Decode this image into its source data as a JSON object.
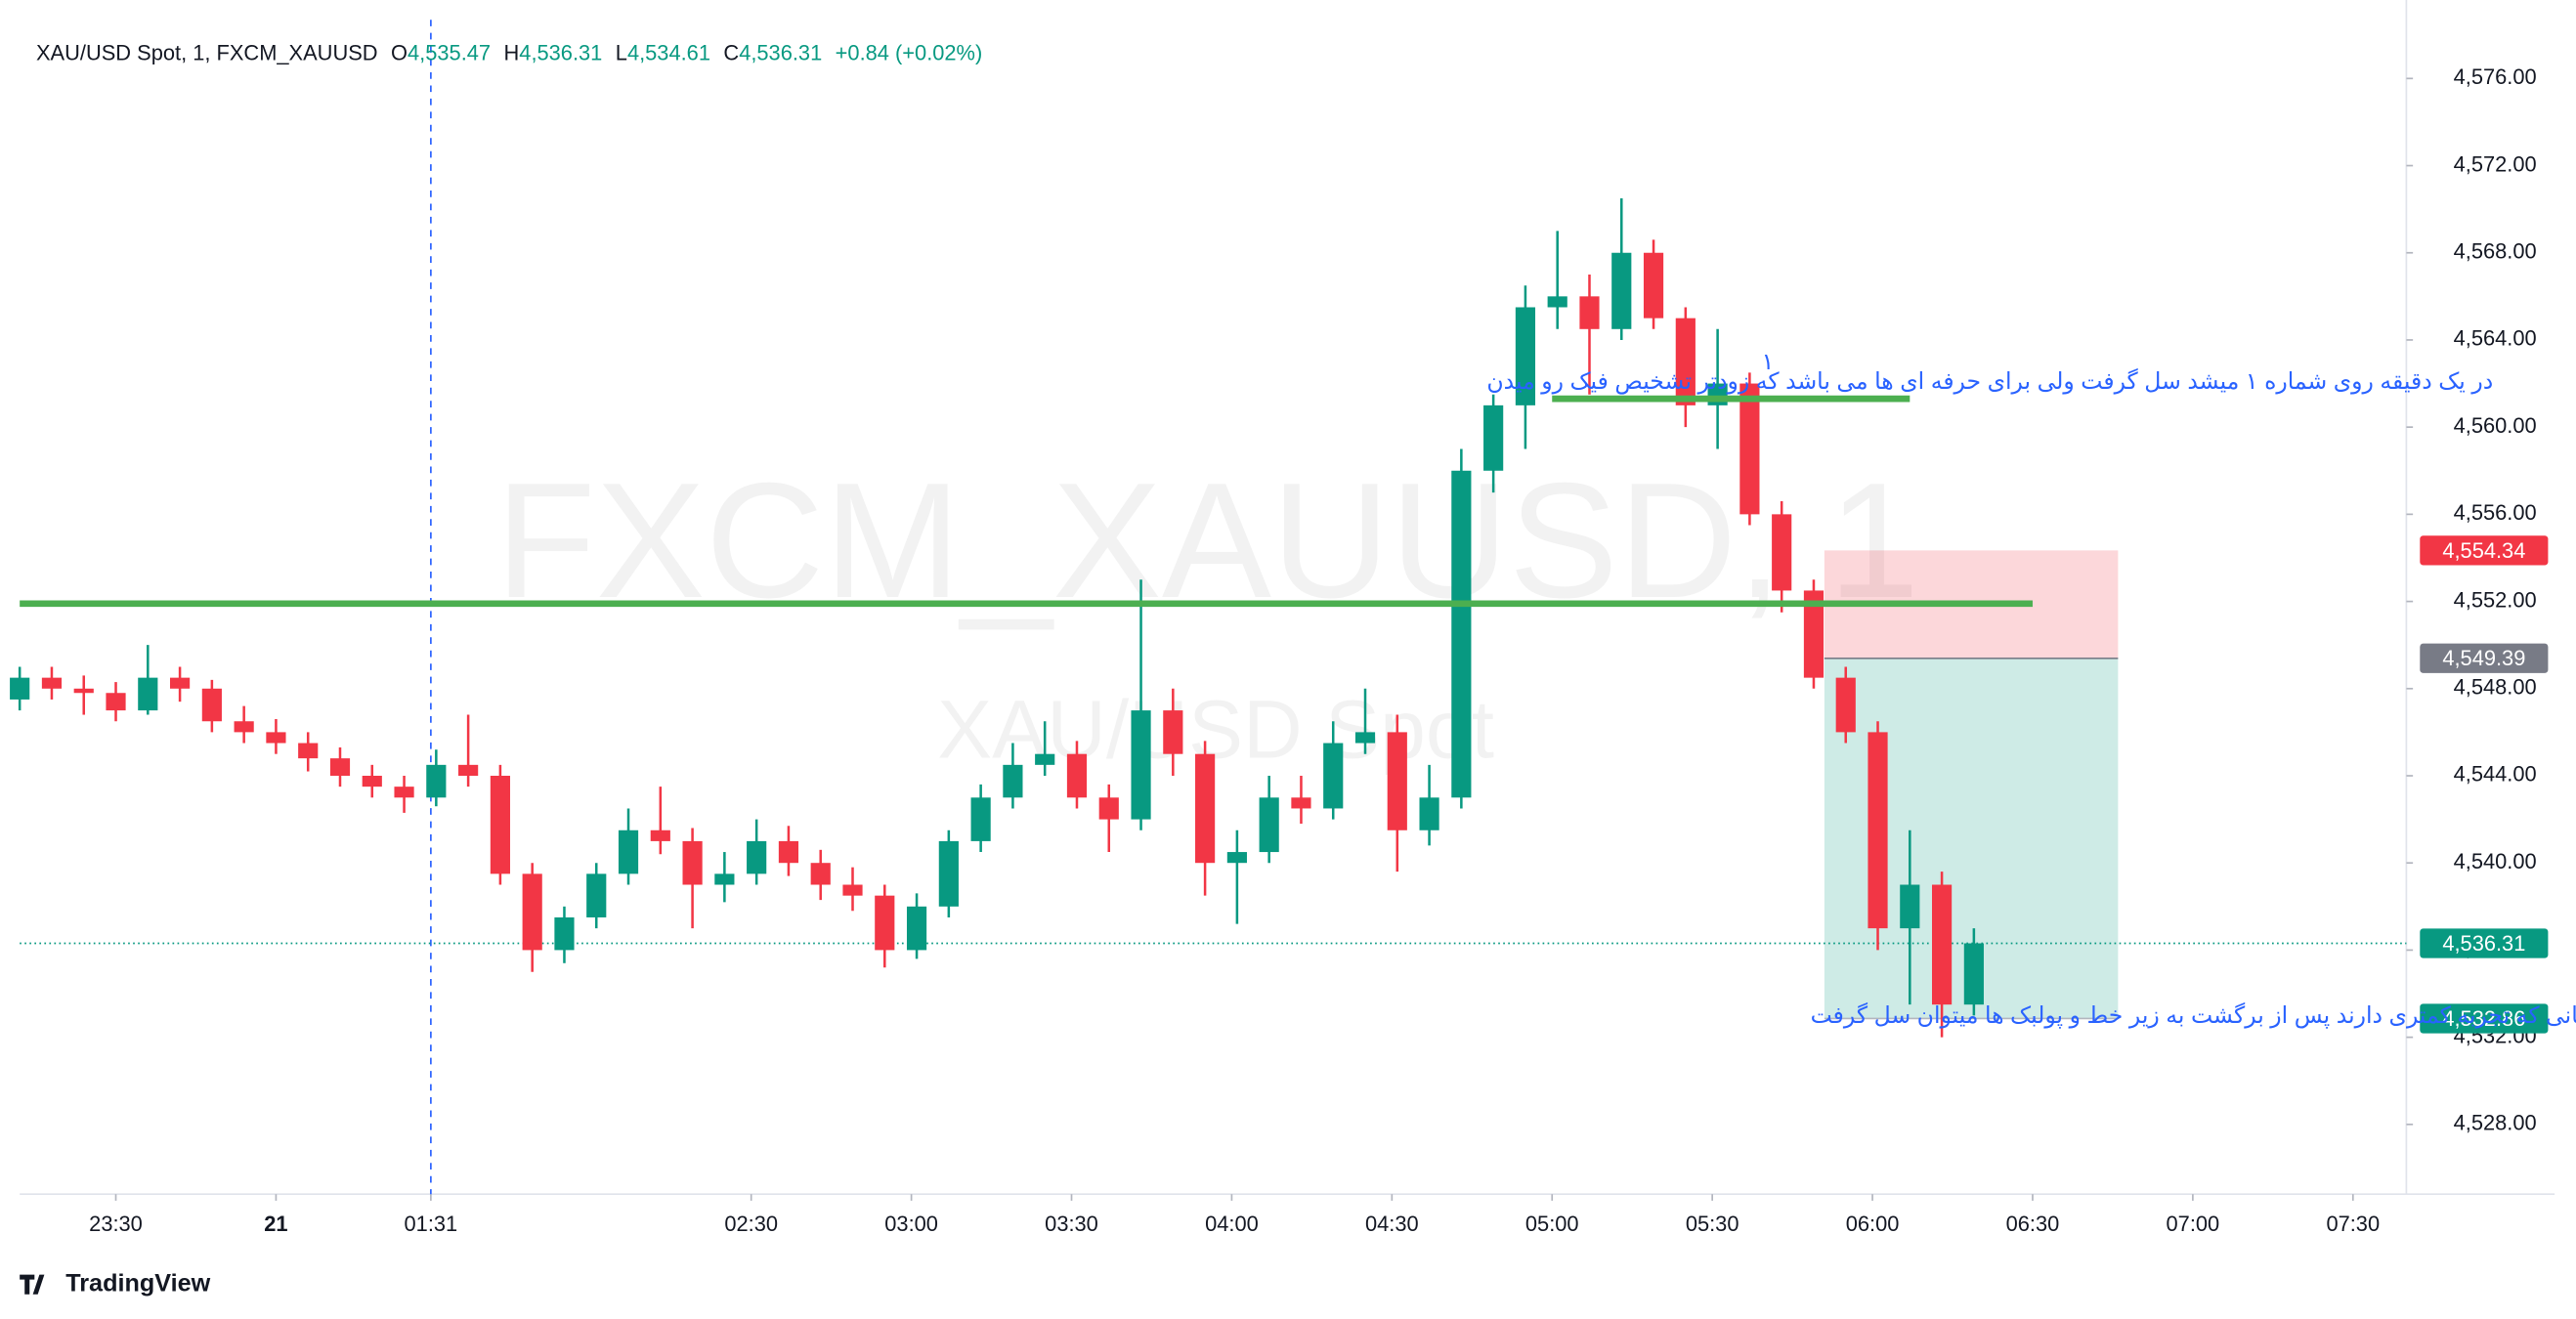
{
  "chart_data": {
    "type": "candlestick",
    "symbol": "XAU/USD Spot, 1, FXCM_XAUUSD",
    "ohlc": [
      {
        "key": "O",
        "value": 4535.47,
        "label": "4,535.47"
      },
      {
        "key": "H",
        "value": 4536.31,
        "label": "4,536.31"
      },
      {
        "key": "L",
        "value": 4534.61,
        "label": "4,534.61"
      },
      {
        "key": "C",
        "value": 4536.31,
        "label": "4,536.31"
      }
    ],
    "change": "+0.84 (+0.02%)",
    "watermark": "FXCM_XAUUSD, 1",
    "watermark_sub": "XAU/USD Spot",
    "annotations": [
      "در یک دقیقه روی شماره ۱ میشد سل گرفت ولی برای حرفه ای ها می باشد که زودتر تشخیص فیک رو میدن",
      "۱",
      "برای باقی دوستانی که تجربه کمتری دارند پس  از برگشت به زیر خط و پولبک ها میتوان سل گرفت"
    ],
    "brand": "TradingView",
    "up_color": "#089981",
    "down_color": "#f23645",
    "xlim": [
      0,
      447
    ],
    "ylim": [
      4524.8,
      4579.6
    ],
    "xticks": [
      {
        "value": 18,
        "label": "23:30"
      },
      {
        "value": 48,
        "label": "21"
      },
      {
        "value": 77,
        "label": "01:31"
      },
      {
        "value": 137,
        "label": "02:30"
      },
      {
        "value": 167,
        "label": "03:00"
      },
      {
        "value": 197,
        "label": "03:30"
      },
      {
        "value": 227,
        "label": "04:00"
      },
      {
        "value": 257,
        "label": "04:30"
      },
      {
        "value": 287,
        "label": "05:00"
      },
      {
        "value": 317,
        "label": "05:30"
      },
      {
        "value": 347,
        "label": "06:00"
      },
      {
        "value": 377,
        "label": "06:30"
      },
      {
        "value": 407,
        "label": "07:00"
      },
      {
        "value": 437,
        "label": "07:30"
      }
    ],
    "yticks": [
      {
        "value": 4528,
        "label": "4,528.00"
      },
      {
        "value": 4532,
        "label": "4,532.00"
      },
      {
        "value": 4536,
        "label": "4,536.00"
      },
      {
        "value": 4540,
        "label": "4,540.00"
      },
      {
        "value": 4544,
        "label": "4,544.00"
      },
      {
        "value": 4548,
        "label": "4,548.00"
      },
      {
        "value": 4552,
        "label": "4,552.00"
      },
      {
        "value": 4556,
        "label": "4,556.00"
      },
      {
        "value": 4560,
        "label": "4,560.00"
      },
      {
        "value": 4564,
        "label": "4,564.00"
      },
      {
        "value": 4568,
        "label": "4,568.00"
      },
      {
        "value": 4572,
        "label": "4,572.00"
      },
      {
        "value": 4576,
        "label": "4,576.00"
      }
    ],
    "candles": [
      [
        0,
        4547.5,
        4549,
        4547,
        4548.5
      ],
      [
        6,
        4548.5,
        4549,
        4547.5,
        4548
      ],
      [
        12,
        4548,
        4548.6,
        4546.8,
        4547.8
      ],
      [
        18,
        4547.8,
        4548.3,
        4546.5,
        4547
      ],
      [
        24,
        4547,
        4550,
        4546.8,
        4548.5
      ],
      [
        30,
        4548.5,
        4549,
        4547.4,
        4548
      ],
      [
        36,
        4548,
        4548.4,
        4546,
        4546.5
      ],
      [
        42,
        4546.5,
        4547.2,
        4545.5,
        4546
      ],
      [
        48,
        4546,
        4546.6,
        4545,
        4545.5
      ],
      [
        54,
        4545.5,
        4546,
        4544.2,
        4544.8
      ],
      [
        60,
        4544.8,
        4545.3,
        4543.5,
        4544
      ],
      [
        66,
        4544,
        4544.5,
        4543,
        4543.5
      ],
      [
        72,
        4543.5,
        4544,
        4542.3,
        4543
      ],
      [
        78,
        4543,
        4545.2,
        4542.6,
        4544.5
      ],
      [
        84,
        4544.5,
        4546.8,
        4543.5,
        4544
      ],
      [
        90,
        4544,
        4544.5,
        4539,
        4539.5
      ],
      [
        96,
        4539.5,
        4540,
        4535,
        4536
      ],
      [
        102,
        4536,
        4538,
        4535.4,
        4537.5
      ],
      [
        108,
        4537.5,
        4540,
        4537,
        4539.5
      ],
      [
        114,
        4539.5,
        4542.5,
        4539,
        4541.5
      ],
      [
        120,
        4541.5,
        4543.5,
        4540.4,
        4541
      ],
      [
        126,
        4541,
        4541.6,
        4537,
        4539
      ],
      [
        132,
        4539,
        4540.5,
        4538.2,
        4539.5
      ],
      [
        138,
        4539.5,
        4542,
        4539,
        4541
      ],
      [
        144,
        4541,
        4541.7,
        4539.4,
        4540
      ],
      [
        150,
        4540,
        4540.6,
        4538.3,
        4539
      ],
      [
        156,
        4539,
        4539.8,
        4537.8,
        4538.5
      ],
      [
        162,
        4538.5,
        4539,
        4535.2,
        4536
      ],
      [
        168,
        4536,
        4538.6,
        4535.6,
        4538
      ],
      [
        174,
        4538,
        4541.5,
        4537.5,
        4541
      ],
      [
        180,
        4541,
        4543.6,
        4540.5,
        4543
      ],
      [
        186,
        4543,
        4545.5,
        4542.5,
        4544.5
      ],
      [
        192,
        4544.5,
        4546.5,
        4544,
        4545
      ],
      [
        198,
        4545,
        4545.6,
        4542.5,
        4543
      ],
      [
        204,
        4543,
        4543.6,
        4540.5,
        4542
      ],
      [
        210,
        4542,
        4553,
        4541.5,
        4547
      ],
      [
        216,
        4547,
        4548,
        4544,
        4545
      ],
      [
        222,
        4545,
        4545.6,
        4538.5,
        4540
      ],
      [
        228,
        4540,
        4541.5,
        4537.2,
        4540.5
      ],
      [
        234,
        4540.5,
        4544,
        4540,
        4543
      ],
      [
        240,
        4543,
        4544,
        4541.8,
        4542.5
      ],
      [
        246,
        4542.5,
        4546.5,
        4542,
        4545.5
      ],
      [
        252,
        4545.5,
        4548,
        4545,
        4546
      ],
      [
        258,
        4546,
        4546.8,
        4539.6,
        4541.5
      ],
      [
        264,
        4541.5,
        4544.5,
        4540.8,
        4543
      ],
      [
        270,
        4543,
        4559,
        4542.5,
        4558
      ],
      [
        276,
        4558,
        4561.5,
        4557,
        4561
      ],
      [
        282,
        4561,
        4566.5,
        4559,
        4565.5
      ],
      [
        288,
        4565.5,
        4569,
        4564.5,
        4566
      ],
      [
        294,
        4566,
        4567,
        4561.5,
        4564.5
      ],
      [
        300,
        4564.5,
        4570.5,
        4564,
        4568
      ],
      [
        306,
        4568,
        4568.6,
        4564.5,
        4565
      ],
      [
        312,
        4565,
        4565.5,
        4560,
        4561
      ],
      [
        318,
        4561,
        4564.5,
        4559,
        4562
      ],
      [
        324,
        4562,
        4562.5,
        4555.5,
        4556
      ],
      [
        330,
        4556,
        4556.6,
        4551.5,
        4552.5
      ],
      [
        336,
        4552.5,
        4553,
        4548,
        4548.5
      ],
      [
        342,
        4548.5,
        4549,
        4545.5,
        4546
      ],
      [
        348,
        4546,
        4546.5,
        4536,
        4537
      ],
      [
        354,
        4537,
        4541.5,
        4533.5,
        4539
      ],
      [
        360,
        4539,
        4539.6,
        4532,
        4533.5
      ],
      [
        366,
        4533.5,
        4537,
        4533,
        4536.31
      ]
    ],
    "lines": [
      {
        "value": 4551.9,
        "x": [
          0,
          377
        ],
        "color": "#4caf50"
      },
      {
        "value": 4561.3,
        "x": [
          287,
          354
        ],
        "color": "#4caf50"
      }
    ],
    "position": {
      "x": [
        338,
        393
      ],
      "stop": {
        "value": 4554.34,
        "label": "4,554.34",
        "color": "#f23645"
      },
      "entry": {
        "value": 4549.39,
        "label": "4,549.39",
        "color": "#787b86"
      },
      "target": {
        "value": 4532.86,
        "label": "4,532.86",
        "color": "#089981"
      }
    },
    "last": {
      "value": 4536.31,
      "label": "4,536.31",
      "color": "#089981"
    }
  }
}
